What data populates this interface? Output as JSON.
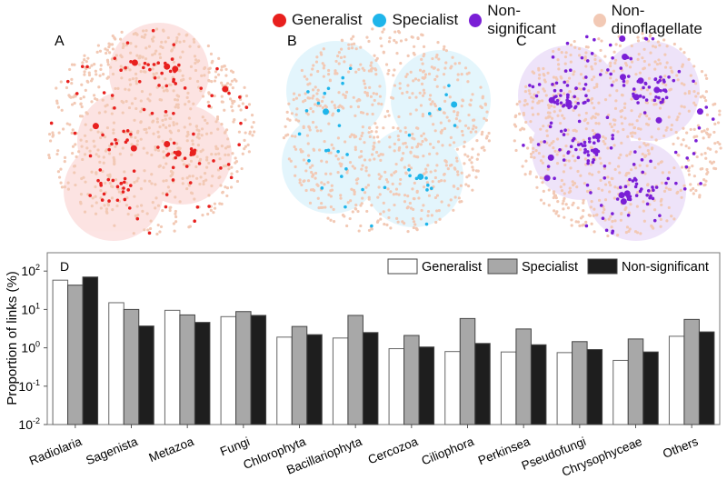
{
  "network_legend": [
    {
      "label": "Generalist",
      "color": "#e8201e"
    },
    {
      "label": "Specialist",
      "color": "#1fb5ea"
    },
    {
      "label": "Non-significant",
      "color": "#7a1fd6"
    },
    {
      "label": "Non-dinoflagellate",
      "color": "#f2c9b5"
    }
  ],
  "panels": {
    "a": "A",
    "b": "B",
    "c": "C",
    "d": "D"
  },
  "chart_data": {
    "type": "bar",
    "panel": "D",
    "ylabel": "Proportion of links (%)",
    "xlabel": "",
    "yscale": "log",
    "ylim": [
      0.01,
      300
    ],
    "yticks": [
      {
        "v": 100,
        "base": "10",
        "exp": "2"
      },
      {
        "v": 10,
        "base": "10",
        "exp": "1"
      },
      {
        "v": 1,
        "base": "10",
        "exp": "0"
      },
      {
        "v": 0.1,
        "base": "10",
        "exp": "-1"
      },
      {
        "v": 0.01,
        "base": "10",
        "exp": "-2"
      }
    ],
    "legend_position": "top-right",
    "categories": [
      "Radiolaria",
      "Sagenista",
      "Metazoa",
      "Fungi",
      "Chlorophyta",
      "Bacillariophyta",
      "Cercozoa",
      "Ciliophora",
      "Perkinsea",
      "Pseudofungi",
      "Chrysophyceae",
      "Others"
    ],
    "series": [
      {
        "name": "Generalist",
        "color": "#ffffff",
        "values": [
          58,
          15,
          9.5,
          6.5,
          1.9,
          1.8,
          0.95,
          0.8,
          0.78,
          0.75,
          0.47,
          2.0
        ]
      },
      {
        "name": "Specialist",
        "color": "#a8a8a8",
        "values": [
          43,
          10,
          7.2,
          8.8,
          3.6,
          7.0,
          2.1,
          5.8,
          3.1,
          1.45,
          1.7,
          5.5
        ]
      },
      {
        "name": "Non-significant",
        "color": "#1e1e1e",
        "values": [
          70,
          3.7,
          4.6,
          7.0,
          2.2,
          2.5,
          1.05,
          1.3,
          1.2,
          0.9,
          0.78,
          2.6
        ]
      }
    ]
  }
}
